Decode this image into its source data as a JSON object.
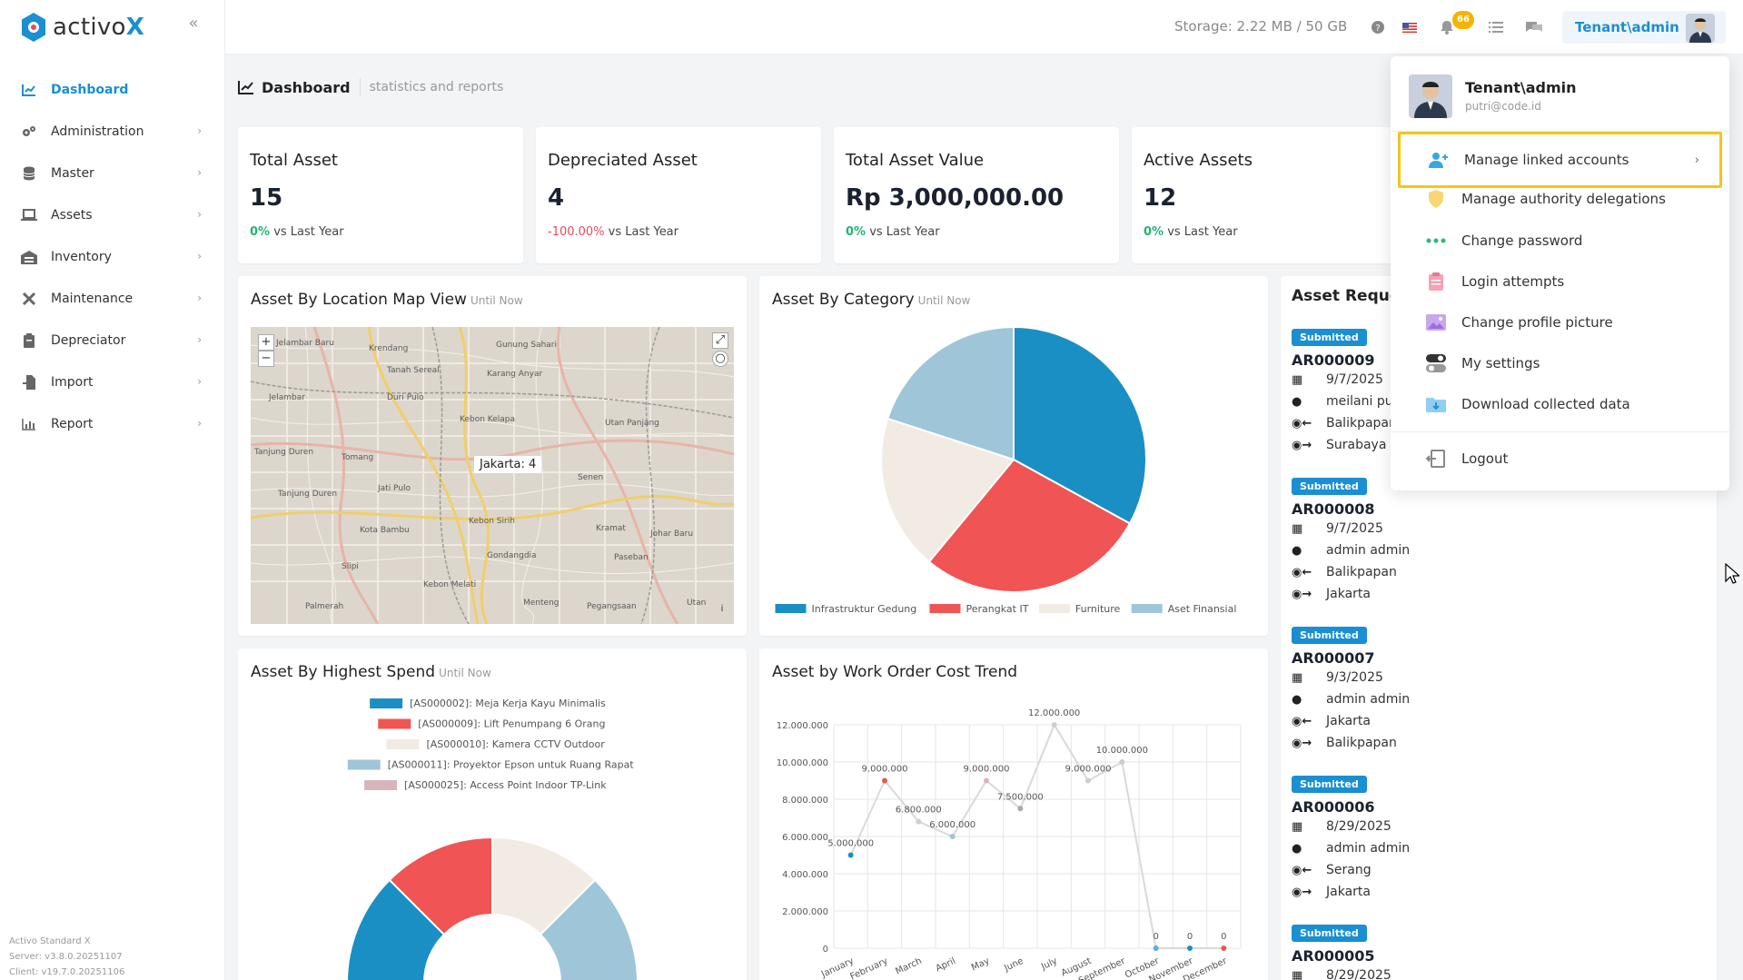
{
  "app": {
    "logo_prefix": "activo",
    "logo_suffix": "X"
  },
  "sidebar": {
    "items": [
      {
        "label": "Dashboard",
        "icon": "chart-line-icon",
        "active": true
      },
      {
        "label": "Administration",
        "icon": "gears-icon"
      },
      {
        "label": "Master",
        "icon": "database-icon"
      },
      {
        "label": "Assets",
        "icon": "laptop-icon"
      },
      {
        "label": "Inventory",
        "icon": "warehouse-icon"
      },
      {
        "label": "Maintenance",
        "icon": "tools-icon"
      },
      {
        "label": "Depreciator",
        "icon": "clipboard-icon"
      },
      {
        "label": "Import",
        "icon": "file-import-icon"
      },
      {
        "label": "Report",
        "icon": "chart-bar-icon"
      }
    ],
    "version": {
      "product": "Activo Standard X",
      "server": "Server: v3.8.0.20251107",
      "client": "Client: v19.7.0.20251106"
    }
  },
  "topbar": {
    "storage": "Storage: 2.22 MB / 50 GB",
    "notifications_count": "66",
    "user_label": "Tenant\\admin"
  },
  "page": {
    "title": "Dashboard",
    "subtitle": "statistics and reports"
  },
  "stats": [
    {
      "title": "Total Asset",
      "value": "15",
      "delta": "0%",
      "delta_suffix": " vs Last Year",
      "dir": "up"
    },
    {
      "title": "Depreciated Asset",
      "value": "4",
      "delta": "-100.00%",
      "delta_suffix": " vs Last Year",
      "dir": "down"
    },
    {
      "title": "Total Asset Value",
      "value": "Rp 3,000,000.00",
      "delta": "0%",
      "delta_suffix": " vs Last Year",
      "dir": "up"
    },
    {
      "title": "Active Assets",
      "value": "12",
      "delta": "0%",
      "delta_suffix": " vs Last Year",
      "dir": "up"
    }
  ],
  "panels": {
    "map": {
      "title": "Asset By Location Map View",
      "until": "Until Now",
      "popup": "Jakarta: 4"
    },
    "category": {
      "title": "Asset By Category",
      "until": "Until Now"
    },
    "spend": {
      "title": "Asset By Highest Spend",
      "until": "Until Now"
    },
    "trend": {
      "title": "Asset by Work Order Cost Trend"
    },
    "requests": {
      "title": "Asset Reque"
    }
  },
  "chart_data": [
    {
      "type": "pie",
      "categories": [
        "Infrastruktur Gedung",
        "Perangkat IT",
        "Furniture",
        "Aset Finansial"
      ],
      "values": [
        33,
        28,
        19,
        20
      ],
      "colors": [
        "#1a8fc4",
        "#f05454",
        "#f1ebe3",
        "#9fc5d8"
      ],
      "legend": "bottom"
    },
    {
      "type": "pie",
      "variant": "half-donut",
      "categories": [
        "[AS000002]: Meja Kerja Kayu Minimalis",
        "[AS000009]: Lift Penumpang 6 Orang",
        "[AS000010]: Kamera CCTV Outdoor",
        "[AS000011]: Proyektor Epson untuk Ruang Rapat",
        "[AS000025]: Access Point Indoor TP-Link"
      ],
      "values": [
        25,
        25,
        25,
        25,
        0
      ],
      "colors": [
        "#1a8fc4",
        "#f05454",
        "#f1ebe3",
        "#9fc5d8",
        "#d8b4bc"
      ],
      "legend": "top"
    },
    {
      "type": "line",
      "x": [
        "January",
        "February",
        "March",
        "April",
        "May",
        "June",
        "July",
        "August",
        "September",
        "October",
        "November",
        "December"
      ],
      "values": [
        5000000,
        9000000,
        6800000,
        6000000,
        9000000,
        7500000,
        12000000,
        9000000,
        10000000,
        0,
        0,
        0
      ],
      "labels": [
        "5.000.000",
        "9.000.000",
        "6.800.000",
        "6.000.000",
        "9.000.000",
        "7.500.000",
        "12.000.000",
        "9.000.000",
        "10.000.000",
        "0",
        "0",
        "0"
      ],
      "point_colors": [
        "#1a8fc4",
        "#f05454",
        "#d4cfc6",
        "#9fc5d8",
        "#d8b4bc",
        "#aaaaaa",
        "#d4cfc6",
        "#cccccc",
        "#cccccc",
        "#5ab0d6",
        "#1a8fc4",
        "#f05454"
      ],
      "yticks": [
        "0",
        "2.000.000",
        "4.000.000",
        "6.000.000",
        "8.000.000",
        "10.000.000",
        "12.000.000"
      ],
      "ylim": [
        0,
        12000000
      ],
      "grid": true
    }
  ],
  "requests": [
    {
      "status": "Submitted",
      "code": "AR000009",
      "date": "9/7/2025",
      "user": "meilani pu",
      "from": "Balikpapan",
      "to": "Surabaya"
    },
    {
      "status": "Submitted",
      "code": "AR000008",
      "date": "9/7/2025",
      "user": "admin admin",
      "from": "Balikpapan",
      "to": "Jakarta"
    },
    {
      "status": "Submitted",
      "code": "AR000007",
      "date": "9/3/2025",
      "user": "admin admin",
      "from": "Jakarta",
      "to": "Balikpapan"
    },
    {
      "status": "Submitted",
      "code": "AR000006",
      "date": "8/29/2025",
      "user": "admin admin",
      "from": "Serang",
      "to": "Jakarta"
    },
    {
      "status": "Submitted",
      "code": "AR000005",
      "date": "8/29/2025"
    }
  ],
  "dropdown": {
    "name": "Tenant\\admin",
    "email": "putri@code.id",
    "items": [
      {
        "label": "Manage linked accounts",
        "icon": "user-plus-icon"
      },
      {
        "label": "Manage authority delegations",
        "icon": "shield-icon"
      },
      {
        "label": "Change password",
        "icon": "dots-icon"
      },
      {
        "label": "Login attempts",
        "icon": "clipboard-list-icon"
      },
      {
        "label": "Change profile picture",
        "icon": "image-icon"
      },
      {
        "label": "My settings",
        "icon": "toggle-icon"
      },
      {
        "label": "Download collected data",
        "icon": "download-folder-icon"
      }
    ],
    "logout": "Logout"
  }
}
